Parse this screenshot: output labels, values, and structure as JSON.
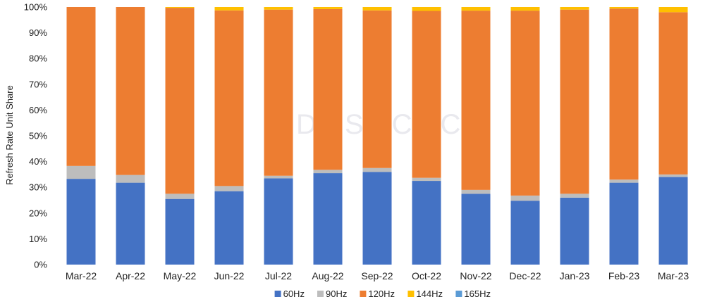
{
  "chart_data": {
    "type": "bar",
    "stacked": true,
    "ylabel": "Refresh Rate Unit Share",
    "ylim": [
      0,
      100
    ],
    "yticks": [
      "0%",
      "10%",
      "20%",
      "30%",
      "40%",
      "50%",
      "60%",
      "70%",
      "80%",
      "90%",
      "100%"
    ],
    "categories": [
      "Mar-22",
      "Apr-22",
      "May-22",
      "Jun-22",
      "Jul-22",
      "Aug-22",
      "Sep-22",
      "Oct-22",
      "Nov-22",
      "Dec-22",
      "Jan-23",
      "Feb-23",
      "Mar-23"
    ],
    "series": [
      {
        "name": "60Hz",
        "color": "#4472c4",
        "values": [
          33.3,
          31.8,
          25.5,
          28.5,
          33.5,
          35.5,
          36.0,
          32.5,
          27.5,
          24.8,
          26.0,
          31.8,
          34.0
        ]
      },
      {
        "name": "90Hz",
        "color": "#bdbdbd",
        "values": [
          5.0,
          3.0,
          2.0,
          2.0,
          1.0,
          1.3,
          1.5,
          1.2,
          1.5,
          2.0,
          1.5,
          1.2,
          1.0
        ]
      },
      {
        "name": "120Hz",
        "color": "#ed7d31",
        "values": [
          61.7,
          65.2,
          72.2,
          68.2,
          64.5,
          62.4,
          61.2,
          64.8,
          69.6,
          71.8,
          71.5,
          66.4,
          63.0
        ]
      },
      {
        "name": "144Hz",
        "color": "#ffc000",
        "values": [
          0.0,
          0.0,
          0.3,
          1.3,
          1.0,
          0.8,
          1.3,
          1.5,
          1.4,
          1.4,
          1.0,
          0.6,
          2.0
        ]
      },
      {
        "name": "165Hz",
        "color": "#5b9bd5",
        "values": [
          0.0,
          0.0,
          0.0,
          0.0,
          0.0,
          0.0,
          0.0,
          0.0,
          0.0,
          0.0,
          0.0,
          0.0,
          0.0
        ]
      }
    ],
    "grid": false,
    "legend": "bottom"
  },
  "watermark": "DSCC"
}
